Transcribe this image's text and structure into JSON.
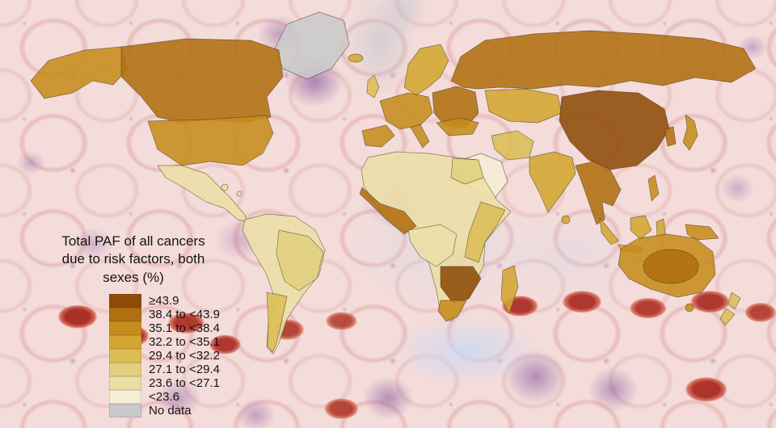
{
  "figure": {
    "kind": "choropleth world map over histology cell background"
  },
  "legend": {
    "title": "Total PAF of all cancers due to risk factors, both sexes (%)",
    "title_lines": [
      "Total PAF of all cancers",
      "due to risk factors, both",
      "sexes (%)"
    ],
    "bins": [
      {
        "label": "≥43.9",
        "color": "#8e4c08"
      },
      {
        "label": "38.4 to <43.9",
        "color": "#b06f10"
      },
      {
        "label": "35.1 to <38.4",
        "color": "#c68c1d"
      },
      {
        "label": "32.2 to <35.1",
        "color": "#d3a631"
      },
      {
        "label": "29.4 to <32.2",
        "color": "#dcbd55"
      },
      {
        "label": "27.1 to <29.4",
        "color": "#e1d07e"
      },
      {
        "label": "23.6 to <27.1",
        "color": "#ecdfa6"
      },
      {
        "label": "<23.6",
        "color": "#f5eed6"
      },
      {
        "label": "No data",
        "color": "#c9c9c9"
      }
    ]
  },
  "map": {
    "regions": {
      "greenland": 8,
      "alaska": 2,
      "canada": 1,
      "usa": 2,
      "mexico": 6,
      "caribbean": 6,
      "south-america": 6,
      "brazil": 5,
      "argentina": 4,
      "iceland": 3,
      "uk": 4,
      "scandinavia": 3,
      "western-europe": 2,
      "iberia": 2,
      "italy": 2,
      "eastern-europe": 1,
      "russia": 1,
      "central-asia": 3,
      "china-mongolia": 0,
      "korea": 1,
      "japan": 2,
      "india": 3,
      "turkey": 2,
      "iran": 4,
      "arabia": 7,
      "africa-base": 6,
      "egypt": 5,
      "west-africa": 1,
      "central-africa": 6,
      "east-africa": 4,
      "southern-africa": 0,
      "south-africa": 2,
      "madagascar": 3,
      "se-asia": 1,
      "sumatra": 3,
      "java": 3,
      "borneo": 3,
      "sulawesi": 3,
      "philippines": 2,
      "png": 2,
      "sri-lanka": 3,
      "australia": 2,
      "australia-inner": 1,
      "tasmania": 2,
      "new-zealand": 4
    }
  }
}
